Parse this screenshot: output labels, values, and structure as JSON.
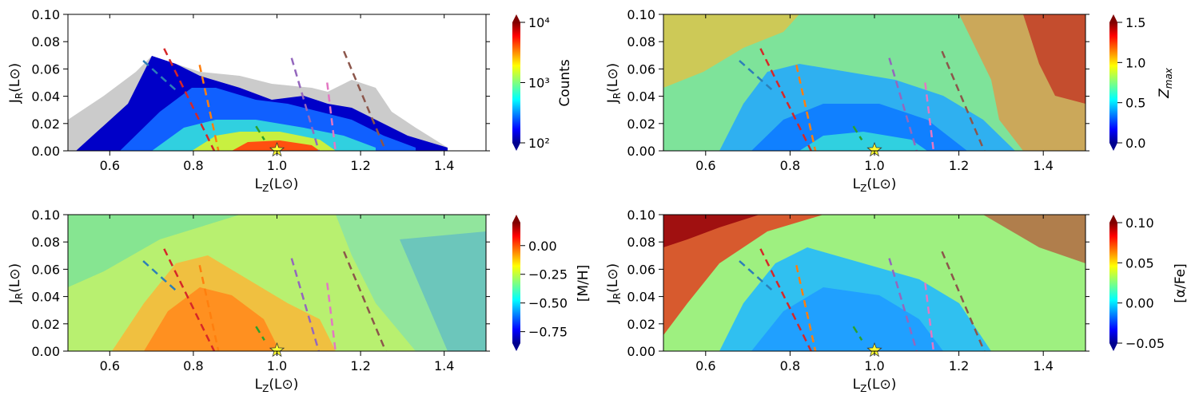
{
  "figure": {
    "panels": [
      {
        "id": "counts",
        "xlabel": "L",
        "xlabel_sub": "Z",
        "xlabel_unit": "(L⊙)",
        "ylabel": "J",
        "ylabel_sub": "R",
        "ylabel_unit": "(L⊙)",
        "x_ticks": [
          "0.6",
          "0.8",
          "1.0",
          "1.2",
          "1.4"
        ],
        "y_ticks": [
          "0.00",
          "0.02",
          "0.04",
          "0.06",
          "0.08",
          "0.10"
        ],
        "colorbar": {
          "label": "Counts",
          "ticks": [
            "10²",
            "10³",
            "10⁴"
          ],
          "scale": "log",
          "range": [
            100,
            10000
          ]
        }
      },
      {
        "id": "zmax",
        "xlabel": "L",
        "xlabel_sub": "Z",
        "xlabel_unit": "(L⊙)",
        "ylabel": "J",
        "ylabel_sub": "R",
        "ylabel_unit": "(L⊙)",
        "x_ticks": [
          "0.6",
          "0.8",
          "1.0",
          "1.2",
          "1.4"
        ],
        "y_ticks": [
          "0.00",
          "0.02",
          "0.04",
          "0.06",
          "0.08",
          "0.10"
        ],
        "colorbar": {
          "label": "Z",
          "label_sub": "max",
          "ticks": [
            "0.0",
            "0.5",
            "1.0",
            "1.5"
          ],
          "range": [
            0,
            1.5
          ]
        }
      },
      {
        "id": "metallicity",
        "xlabel": "L",
        "xlabel_sub": "Z",
        "xlabel_unit": "(L⊙)",
        "ylabel": "J",
        "ylabel_sub": "R",
        "ylabel_unit": "(L⊙)",
        "x_ticks": [
          "0.6",
          "0.8",
          "1.0",
          "1.2",
          "1.4"
        ],
        "y_ticks": [
          "0.00",
          "0.02",
          "0.04",
          "0.06",
          "0.08",
          "0.10"
        ],
        "colorbar": {
          "label": "[M/H]",
          "ticks": [
            "−0.75",
            "−0.50",
            "−0.25",
            "0.00"
          ],
          "range": [
            -0.85,
            0.2
          ]
        }
      },
      {
        "id": "alpha",
        "xlabel": "L",
        "xlabel_sub": "Z",
        "xlabel_unit": "(L⊙)",
        "ylabel": "J",
        "ylabel_sub": "R",
        "ylabel_unit": "(L⊙)",
        "x_ticks": [
          "0.6",
          "0.8",
          "1.0",
          "1.2",
          "1.4"
        ],
        "y_ticks": [
          "0.00",
          "0.02",
          "0.04",
          "0.06",
          "0.08",
          "0.10"
        ],
        "colorbar": {
          "label": "[α/Fe]",
          "ticks": [
            "−0.05",
            "0.00",
            "0.05",
            "0.10"
          ],
          "range": [
            -0.05,
            0.1
          ]
        }
      }
    ]
  },
  "chart_data": [
    {
      "type": "heatmap",
      "panel": "counts",
      "xlabel": "L_Z(L⊙)",
      "ylabel": "J_R(L⊙)",
      "xlim": [
        0.5,
        1.5
      ],
      "ylim": [
        0.0,
        0.1
      ],
      "x_ticks": [
        0.6,
        0.8,
        1.0,
        1.2,
        1.4
      ],
      "y_ticks": [
        0.0,
        0.02,
        0.04,
        0.06,
        0.08,
        0.1
      ],
      "colorbar": {
        "label": "Counts",
        "scale": "log",
        "range": [
          100,
          10000
        ],
        "colormap": "jet"
      },
      "sun_marker": {
        "x": 1.0,
        "y": 0.0,
        "color": "#ffff33"
      },
      "ridges": [
        {
          "color": "#2c7fb8",
          "x": [
            0.68,
            0.76
          ],
          "y": [
            0.066,
            0.044
          ]
        },
        {
          "color": "#d62728",
          "x": [
            0.73,
            0.85
          ],
          "y": [
            0.075,
            0.0
          ]
        },
        {
          "color": "#ff7f0e",
          "x": [
            0.815,
            0.86
          ],
          "y": [
            0.063,
            0.0
          ]
        },
        {
          "color": "#2ca02c",
          "x": [
            0.95,
            0.97
          ],
          "y": [
            0.018,
            0.008
          ]
        },
        {
          "color": "#9467bd",
          "x": [
            1.035,
            1.1
          ],
          "y": [
            0.068,
            0.0
          ]
        },
        {
          "color": "#e377c2",
          "x": [
            1.12,
            1.14
          ],
          "y": [
            0.05,
            0.0
          ]
        },
        {
          "color": "#8c564b",
          "x": [
            1.16,
            1.26
          ],
          "y": [
            0.073,
            0.0
          ]
        }
      ]
    },
    {
      "type": "heatmap",
      "panel": "zmax",
      "xlabel": "L_Z(L⊙)",
      "ylabel": "J_R(L⊙)",
      "xlim": [
        0.5,
        1.5
      ],
      "ylim": [
        0.0,
        0.1
      ],
      "x_ticks": [
        0.6,
        0.8,
        1.0,
        1.2,
        1.4
      ],
      "y_ticks": [
        0.0,
        0.02,
        0.04,
        0.06,
        0.08,
        0.1
      ],
      "colorbar": {
        "label": "Z_max",
        "range": [
          0.0,
          1.5
        ],
        "ticks": [
          0.0,
          0.5,
          1.0,
          1.5
        ],
        "colormap": "jet"
      },
      "sun_marker": {
        "x": 1.0,
        "y": 0.0,
        "color": "#ffff33"
      }
    },
    {
      "type": "heatmap",
      "panel": "metallicity",
      "xlabel": "L_Z(L⊙)",
      "ylabel": "J_R(L⊙)",
      "xlim": [
        0.5,
        1.5
      ],
      "ylim": [
        0.0,
        0.1
      ],
      "x_ticks": [
        0.6,
        0.8,
        1.0,
        1.2,
        1.4
      ],
      "y_ticks": [
        0.0,
        0.02,
        0.04,
        0.06,
        0.08,
        0.1
      ],
      "colorbar": {
        "label": "[M/H]",
        "range": [
          -0.85,
          0.2
        ],
        "ticks": [
          -0.75,
          -0.5,
          -0.25,
          0.0
        ],
        "colormap": "jet"
      },
      "sun_marker": {
        "x": 1.0,
        "y": 0.0,
        "color": "#ffff33"
      }
    },
    {
      "type": "heatmap",
      "panel": "alpha",
      "xlabel": "L_Z(L⊙)",
      "ylabel": "J_R(L⊙)",
      "xlim": [
        0.5,
        1.5
      ],
      "ylim": [
        0.0,
        0.1
      ],
      "x_ticks": [
        0.6,
        0.8,
        1.0,
        1.2,
        1.4
      ],
      "y_ticks": [
        0.0,
        0.02,
        0.04,
        0.06,
        0.08,
        0.1
      ],
      "colorbar": {
        "label": "[α/Fe]",
        "range": [
          -0.05,
          0.1
        ],
        "ticks": [
          -0.05,
          0.0,
          0.05,
          0.1
        ],
        "colormap": "jet"
      },
      "sun_marker": {
        "x": 1.0,
        "y": 0.0,
        "color": "#ffff33"
      }
    }
  ]
}
